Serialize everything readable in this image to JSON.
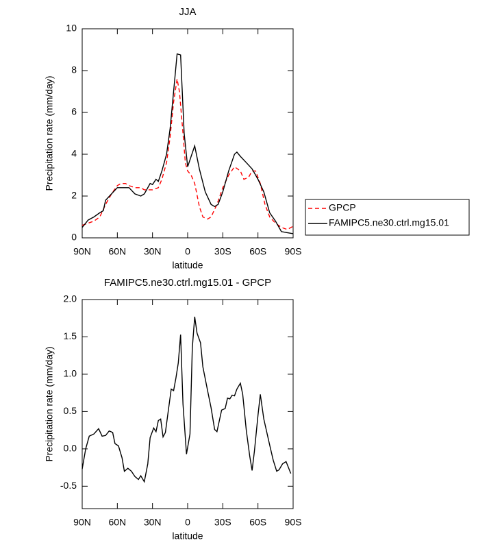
{
  "chart_data": [
    {
      "type": "line",
      "title": "JJA",
      "xlabel": "latitude",
      "ylabel": "Precipitation rate (mm/day)",
      "xlim": [
        90,
        -90
      ],
      "ylim": [
        0,
        10
      ],
      "xticks": [
        {
          "value": 90,
          "label": "90N"
        },
        {
          "value": 60,
          "label": "60N"
        },
        {
          "value": 30,
          "label": "30N"
        },
        0,
        {
          "value": -30,
          "label": "30S"
        },
        {
          "value": -60,
          "label": "60S"
        },
        {
          "value": -90,
          "label": "90S"
        }
      ],
      "yticks": [
        0,
        2,
        4,
        6,
        8,
        10
      ],
      "legend": "right",
      "series": [
        {
          "name": "GPCP",
          "color": "#ff0000",
          "dashed": true,
          "x": [
            90,
            85,
            80,
            75,
            70,
            65,
            60,
            57,
            53,
            50,
            45,
            40,
            37,
            33,
            30,
            25,
            22,
            18,
            15,
            12,
            9,
            7,
            4,
            2,
            0,
            -3,
            -6,
            -10,
            -13,
            -17,
            -20,
            -25,
            -30,
            -35,
            -40,
            -45,
            -48,
            -52,
            -55,
            -58,
            -62,
            -66,
            -70,
            -75,
            -80,
            -85,
            -90
          ],
          "values": [
            0.6,
            0.7,
            0.8,
            1.0,
            1.6,
            2.1,
            2.5,
            2.6,
            2.6,
            2.5,
            2.4,
            2.4,
            2.3,
            2.3,
            2.3,
            2.4,
            2.8,
            3.6,
            4.8,
            6.5,
            7.6,
            7.0,
            5.0,
            3.6,
            3.2,
            3.0,
            2.6,
            1.5,
            1.0,
            0.9,
            1.0,
            1.6,
            2.4,
            3.0,
            3.4,
            3.2,
            2.8,
            2.9,
            3.2,
            3.2,
            2.6,
            1.6,
            1.0,
            0.7,
            0.5,
            0.4,
            0.55
          ]
        },
        {
          "name": "FAMIPC5.ne30.ctrl.mg15.01",
          "color": "#000000",
          "dashed": false,
          "x": [
            90,
            85,
            80,
            75,
            72,
            70,
            65,
            60,
            55,
            50,
            45,
            40,
            37,
            35,
            32,
            30,
            27,
            25,
            22,
            18,
            15,
            12,
            9,
            6,
            3,
            0,
            -3,
            -6,
            -10,
            -15,
            -20,
            -23,
            -26,
            -30,
            -35,
            -40,
            -42,
            -45,
            -50,
            -55,
            -60,
            -65,
            -70,
            -75,
            -80,
            -85,
            -90
          ],
          "values": [
            0.5,
            0.85,
            1.0,
            1.2,
            1.3,
            1.8,
            2.1,
            2.4,
            2.4,
            2.4,
            2.1,
            2.0,
            2.1,
            2.3,
            2.6,
            2.55,
            2.8,
            2.7,
            3.2,
            4.0,
            5.2,
            7.0,
            8.8,
            8.75,
            5.0,
            3.4,
            3.9,
            4.4,
            3.3,
            2.2,
            1.6,
            1.5,
            1.6,
            2.2,
            3.2,
            4.0,
            4.1,
            3.9,
            3.6,
            3.3,
            2.8,
            2.2,
            1.2,
            0.8,
            0.3,
            0.25,
            0.2
          ]
        }
      ]
    },
    {
      "type": "line",
      "title": "FAMIPC5.ne30.ctrl.mg15.01 - GPCP",
      "xlabel": "latitude",
      "ylabel": "Precipitation rate (mm/day)",
      "xlim": [
        90,
        -90
      ],
      "ylim": [
        -0.8,
        2.0
      ],
      "xticks": [
        {
          "value": 90,
          "label": "90N"
        },
        {
          "value": 60,
          "label": "60N"
        },
        {
          "value": 30,
          "label": "30N"
        },
        0,
        {
          "value": -30,
          "label": "30S"
        },
        {
          "value": -60,
          "label": "60S"
        },
        {
          "value": -90,
          "label": "90S"
        }
      ],
      "yticks": [
        {
          "value": 2,
          "label": "2.0"
        },
        1.5,
        {
          "value": 1,
          "label": "1.0"
        },
        0.5,
        {
          "value": 0,
          "label": "0.0"
        },
        -0.5
      ],
      "series": [
        {
          "color": "#000000",
          "dashed": false,
          "x": [
            90,
            87,
            84,
            80,
            76,
            73,
            70,
            67,
            64,
            62,
            59,
            56,
            54,
            51,
            48,
            45,
            42,
            40,
            37,
            34,
            32,
            29,
            27,
            25,
            23,
            21,
            19,
            16,
            14,
            12,
            10,
            8,
            6,
            4,
            1,
            -2,
            -4,
            -6,
            -8,
            -11,
            -13,
            -17,
            -20,
            -23,
            -25,
            -29,
            -32,
            -34,
            -36,
            -38,
            -40,
            -42,
            -45,
            -47,
            -50,
            -53,
            -55,
            -57,
            -60,
            -62,
            -65,
            -70,
            -73,
            -76,
            -78,
            -81,
            -84,
            -86,
            -88
          ],
          "values": [
            -0.27,
            0.0,
            0.17,
            0.2,
            0.27,
            0.17,
            0.18,
            0.24,
            0.22,
            0.07,
            0.04,
            -0.12,
            -0.3,
            -0.26,
            -0.3,
            -0.37,
            -0.41,
            -0.36,
            -0.44,
            -0.2,
            0.15,
            0.28,
            0.23,
            0.38,
            0.4,
            0.16,
            0.22,
            0.57,
            0.8,
            0.78,
            0.95,
            1.15,
            1.53,
            0.6,
            -0.07,
            0.2,
            1.35,
            1.77,
            1.55,
            1.42,
            1.1,
            0.78,
            0.55,
            0.26,
            0.23,
            0.52,
            0.54,
            0.68,
            0.67,
            0.72,
            0.71,
            0.8,
            0.88,
            0.73,
            0.25,
            -0.1,
            -0.29,
            -0.03,
            0.45,
            0.73,
            0.4,
            0.05,
            -0.15,
            -0.3,
            -0.28,
            -0.2,
            -0.17,
            -0.25,
            -0.33
          ]
        }
      ]
    }
  ]
}
